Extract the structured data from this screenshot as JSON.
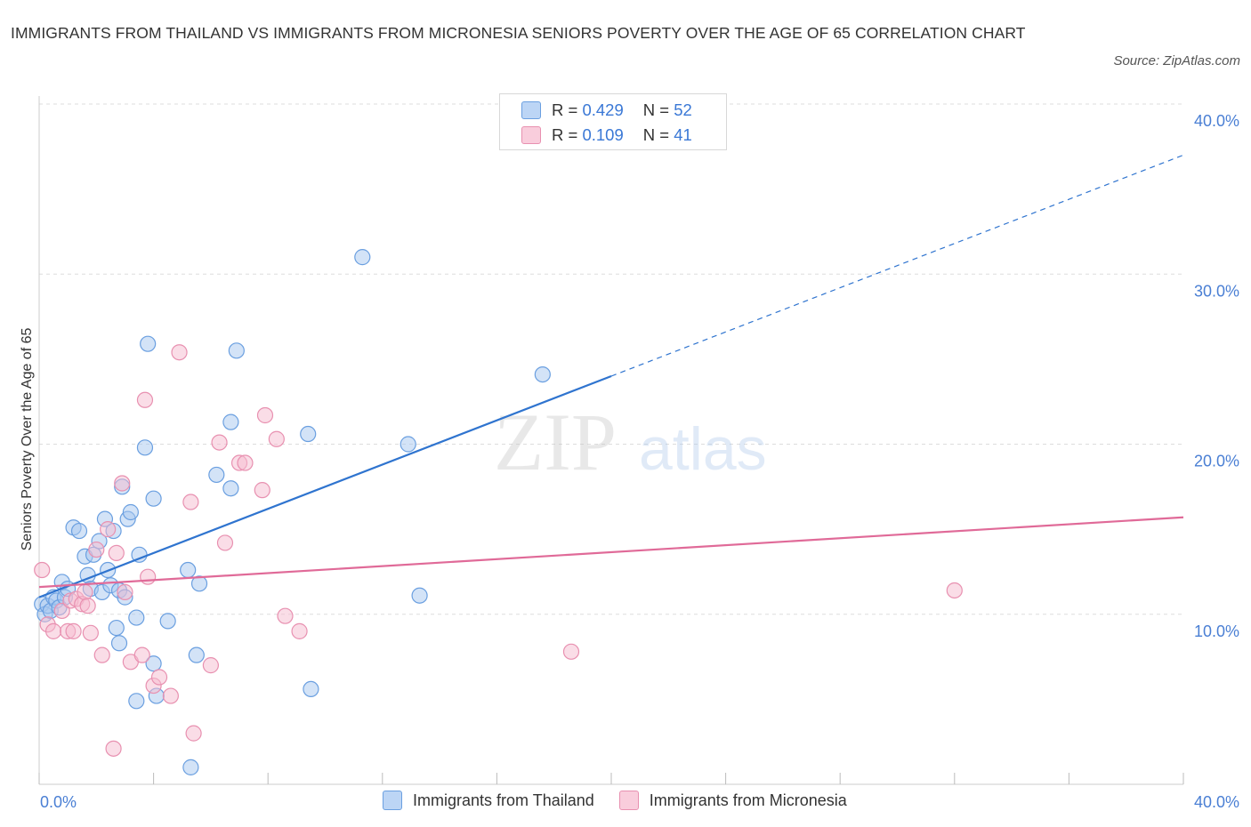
{
  "title": "IMMIGRANTS FROM THAILAND VS IMMIGRANTS FROM MICRONESIA SENIORS POVERTY OVER THE AGE OF 65 CORRELATION CHART",
  "source": "Source: ZipAtlas.com",
  "watermark": {
    "zip": "ZIP",
    "atlas": "atlas"
  },
  "colors": {
    "thailand_fill": "#a8c8f0",
    "thailand_stroke": "#6a9fe0",
    "thailand_line": "#2f74cf",
    "micronesia_fill": "#f6bcd0",
    "micronesia_stroke": "#e890b0",
    "micronesia_line": "#e06a98",
    "tick_text": "#4a7fd4",
    "grid": "#dddddd"
  },
  "legend": {
    "rows": [
      {
        "r_label": "R =",
        "r_value": "0.429",
        "n_label": "N =",
        "n_value": "52"
      },
      {
        "r_label": "R =",
        "r_value": "0.109",
        "n_label": "N =",
        "n_value": "41"
      }
    ]
  },
  "chart_data": {
    "type": "scatter",
    "title": "IMMIGRANTS FROM THAILAND VS IMMIGRANTS FROM MICRONESIA SENIORS POVERTY OVER THE AGE OF 65 CORRELATION CHART",
    "xlabel": "",
    "ylabel": "Seniors Poverty Over the Age of 65",
    "xlim": [
      0,
      40
    ],
    "ylim": [
      0,
      40
    ],
    "x_tick_labels": [
      "0.0%",
      "40.0%"
    ],
    "y_tick_labels": [
      "10.0%",
      "20.0%",
      "30.0%",
      "40.0%"
    ],
    "y_ticks": [
      10,
      20,
      30,
      40
    ],
    "grid": true,
    "legend_position": "top-center",
    "series": [
      {
        "name": "Immigrants from Thailand",
        "r": 0.429,
        "n": 52,
        "trend": {
          "x_start": 0,
          "y_start": 11.0,
          "x_solid_end": 20,
          "y_solid_end": 24.0,
          "x_dash_end": 40,
          "y_dash_end": 37.0
        },
        "points": [
          [
            0.1,
            10.6
          ],
          [
            0.2,
            10.0
          ],
          [
            0.3,
            10.5
          ],
          [
            0.4,
            10.2
          ],
          [
            0.5,
            11.0
          ],
          [
            0.6,
            10.8
          ],
          [
            0.7,
            10.4
          ],
          [
            0.8,
            11.9
          ],
          [
            0.9,
            11.0
          ],
          [
            1.0,
            11.5
          ],
          [
            1.2,
            15.1
          ],
          [
            1.4,
            14.9
          ],
          [
            1.6,
            13.4
          ],
          [
            1.7,
            12.3
          ],
          [
            1.8,
            11.5
          ],
          [
            1.9,
            13.5
          ],
          [
            2.1,
            14.3
          ],
          [
            2.2,
            11.3
          ],
          [
            2.3,
            15.6
          ],
          [
            2.4,
            12.6
          ],
          [
            2.5,
            11.7
          ],
          [
            2.6,
            14.9
          ],
          [
            2.7,
            9.2
          ],
          [
            2.8,
            11.4
          ],
          [
            2.8,
            8.3
          ],
          [
            2.9,
            17.5
          ],
          [
            3.0,
            11.0
          ],
          [
            3.1,
            15.6
          ],
          [
            3.2,
            16.0
          ],
          [
            3.4,
            9.8
          ],
          [
            3.4,
            4.9
          ],
          [
            3.5,
            13.5
          ],
          [
            3.7,
            19.8
          ],
          [
            3.8,
            25.9
          ],
          [
            4.0,
            7.1
          ],
          [
            4.0,
            16.8
          ],
          [
            4.1,
            5.2
          ],
          [
            4.5,
            9.6
          ],
          [
            5.2,
            12.6
          ],
          [
            5.3,
            1.0
          ],
          [
            5.5,
            7.6
          ],
          [
            5.6,
            11.8
          ],
          [
            6.2,
            18.2
          ],
          [
            6.7,
            21.3
          ],
          [
            6.7,
            17.4
          ],
          [
            6.9,
            25.5
          ],
          [
            9.4,
            20.6
          ],
          [
            9.5,
            5.6
          ],
          [
            11.3,
            31.0
          ],
          [
            12.9,
            20.0
          ],
          [
            13.3,
            11.1
          ],
          [
            17.6,
            24.1
          ]
        ]
      },
      {
        "name": "Immigrants from Micronesia",
        "r": 0.109,
        "n": 41,
        "trend": {
          "x_start": 0,
          "y_start": 11.6,
          "x_end": 40,
          "y_end": 15.7
        },
        "points": [
          [
            0.1,
            12.6
          ],
          [
            0.3,
            9.4
          ],
          [
            0.5,
            9.0
          ],
          [
            0.8,
            10.2
          ],
          [
            1.0,
            9.0
          ],
          [
            1.1,
            10.8
          ],
          [
            1.2,
            9.0
          ],
          [
            1.3,
            10.9
          ],
          [
            1.5,
            10.6
          ],
          [
            1.6,
            11.3
          ],
          [
            1.7,
            10.5
          ],
          [
            1.8,
            8.9
          ],
          [
            2.0,
            13.8
          ],
          [
            2.2,
            7.6
          ],
          [
            2.4,
            15.0
          ],
          [
            2.6,
            2.1
          ],
          [
            2.7,
            13.6
          ],
          [
            2.9,
            17.7
          ],
          [
            3.0,
            11.3
          ],
          [
            3.2,
            7.2
          ],
          [
            3.6,
            7.6
          ],
          [
            3.7,
            22.6
          ],
          [
            3.8,
            12.2
          ],
          [
            4.0,
            5.8
          ],
          [
            4.2,
            6.3
          ],
          [
            4.6,
            5.2
          ],
          [
            4.9,
            25.4
          ],
          [
            5.3,
            16.6
          ],
          [
            5.4,
            3.0
          ],
          [
            6.0,
            7.0
          ],
          [
            6.3,
            20.1
          ],
          [
            6.5,
            14.2
          ],
          [
            7.0,
            18.9
          ],
          [
            7.2,
            18.9
          ],
          [
            7.8,
            17.3
          ],
          [
            7.9,
            21.7
          ],
          [
            8.3,
            20.3
          ],
          [
            8.6,
            9.9
          ],
          [
            9.1,
            9.0
          ],
          [
            18.6,
            7.8
          ],
          [
            32.0,
            11.4
          ]
        ]
      }
    ]
  }
}
